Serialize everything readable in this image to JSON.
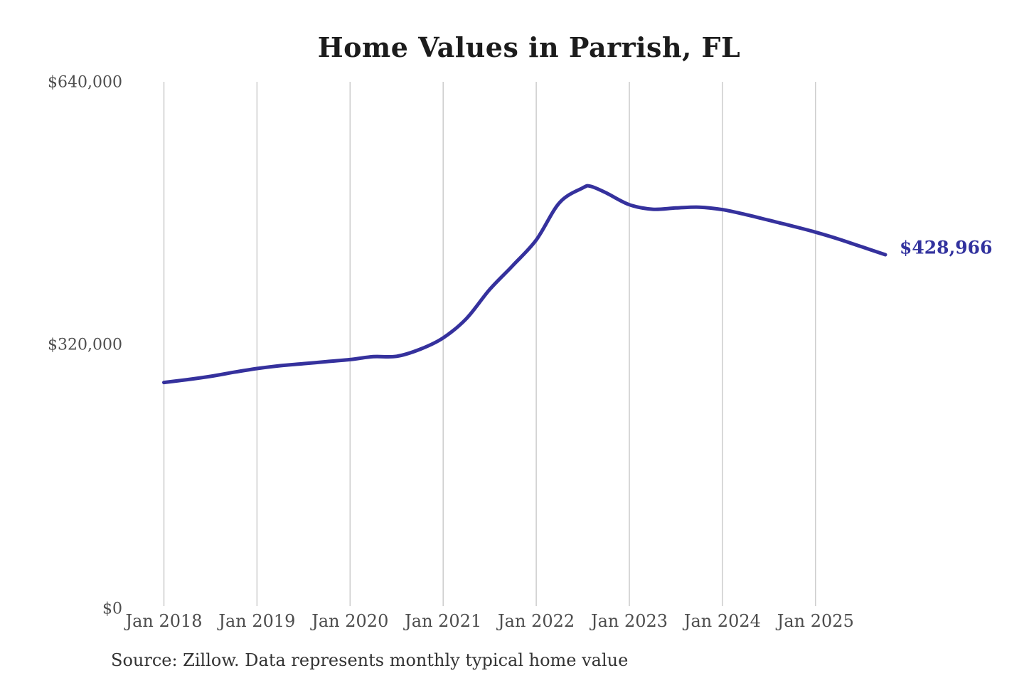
{
  "title": "Home Values in Parrish, FL",
  "source_note": "Source: Zillow. Data represents monthly typical home value",
  "end_label": "$428,966",
  "colors": {
    "background": "#ffffff",
    "line": "#35319d",
    "end_label": "#32329e",
    "gridline": "#cccccc",
    "axis_text": "#4d4d4d",
    "title_text": "#1c1c1c",
    "source_text": "#333333"
  },
  "chart_data": {
    "type": "line",
    "title": "Home Values in Parrish, FL",
    "xlabel": "",
    "ylabel": "",
    "ylim": [
      0,
      640000
    ],
    "grid": "vertical-only",
    "legend": "none",
    "last_point_label": "$428,966",
    "yticks": {
      "values": [
        0,
        320000,
        640000
      ],
      "labels": [
        "$0",
        "$320,000",
        "$640,000"
      ]
    },
    "xticks": {
      "months": [
        0,
        12,
        24,
        36,
        48,
        60,
        72,
        84
      ],
      "labels": [
        "Jan 2018",
        "Jan 2019",
        "Jan 2020",
        "Jan 2021",
        "Jan 2022",
        "Jan 2023",
        "Jan 2024",
        "Jan 2025"
      ]
    },
    "series": [
      {
        "name": "Monthly typical home value",
        "dates": [
          "2018-01",
          "2018-04",
          "2018-07",
          "2018-10",
          "2019-01",
          "2019-04",
          "2019-07",
          "2019-10",
          "2020-01",
          "2020-04",
          "2020-07",
          "2020-10",
          "2021-01",
          "2021-04",
          "2021-07",
          "2021-10",
          "2022-01",
          "2022-04",
          "2022-07",
          "2022-08",
          "2022-10",
          "2023-01",
          "2023-04",
          "2023-07",
          "2023-10",
          "2024-01",
          "2024-04",
          "2024-07",
          "2024-10",
          "2025-01",
          "2025-04",
          "2025-07",
          "2025-10"
        ],
        "values": [
          273000,
          276500,
          280500,
          285500,
          290000,
          293500,
          296000,
          298500,
          301000,
          304500,
          305000,
          313500,
          327500,
          351000,
          386500,
          416000,
          447000,
          492500,
          510500,
          512500,
          504500,
          490000,
          484500,
          486000,
          487000,
          484000,
          478000,
          471000,
          464000,
          456500,
          448000,
          438500,
          428966
        ]
      }
    ]
  }
}
